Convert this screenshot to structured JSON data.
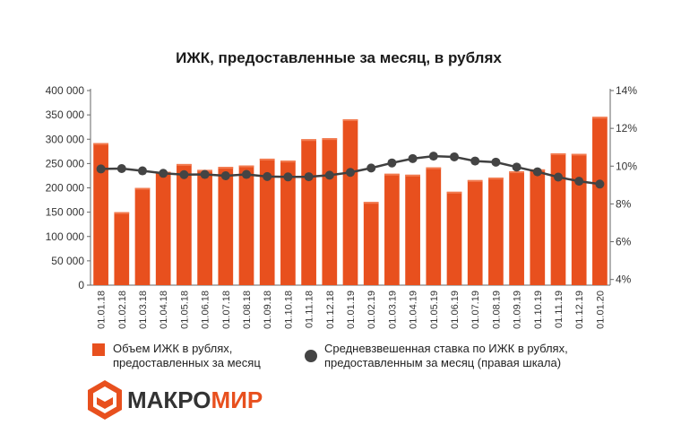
{
  "chart_data": {
    "type": "bar",
    "title": "ИЖК, предоставленные за месяц, в рублях",
    "categories": [
      "01.01.18",
      "01.02.18",
      "01.03.18",
      "01.04.18",
      "01.05.18",
      "01.06.18",
      "01.07.18",
      "01.08.18",
      "01.09.18",
      "01.10.18",
      "01.11.18",
      "01.12.18",
      "01.01.19",
      "01.02.19",
      "01.03.19",
      "01.04.19",
      "01.05.19",
      "01.06.19",
      "01.07.19",
      "01.08.19",
      "01.09.19",
      "01.10.19",
      "01.11.19",
      "01.12.19",
      "01.01.20"
    ],
    "y_left": {
      "ylim": [
        0,
        400000
      ],
      "ticks": [
        0,
        50000,
        100000,
        150000,
        200000,
        250000,
        300000,
        350000,
        400000
      ],
      "tick_labels": [
        "0",
        "50 000",
        "100 000",
        "150 000",
        "200 000",
        "250 000",
        "300 000",
        "350 000",
        "400 000"
      ]
    },
    "y_right": {
      "ylim": [
        3.7,
        14
      ],
      "ticks": [
        4,
        6,
        8,
        10,
        12,
        14
      ],
      "tick_labels": [
        "4%",
        "6%",
        "8%",
        "10%",
        "12%",
        "14%"
      ]
    },
    "series": [
      {
        "name": "Объем ИЖК в рублях, предоставленных за месяц",
        "type": "bar",
        "axis": "left",
        "color": "#e8501e",
        "values": [
          292000,
          150000,
          200000,
          233000,
          249000,
          237000,
          243000,
          246000,
          260000,
          256000,
          300000,
          302000,
          341000,
          171000,
          229000,
          227000,
          242000,
          192000,
          216000,
          221000,
          234000,
          238000,
          271000,
          270000,
          346000
        ]
      },
      {
        "name": "Средневзвешенная ставка по ИЖК  в рублях, предоставленным за месяц (правая шкала)",
        "type": "line",
        "axis": "right",
        "color": "#404040",
        "values": [
          9.85,
          9.87,
          9.75,
          9.62,
          9.55,
          9.56,
          9.49,
          9.56,
          9.45,
          9.43,
          9.44,
          9.52,
          9.67,
          9.9,
          10.17,
          10.4,
          10.53,
          10.49,
          10.27,
          10.21,
          9.95,
          9.7,
          9.42,
          9.2,
          9.05
        ]
      }
    ],
    "legend_position": "bottom",
    "grid": false
  },
  "legend": {
    "bar_line1": "Объем ИЖК в рублях,",
    "bar_line2": "предоставленных за месяц",
    "line_line1": "Средневзвешенная ставка по ИЖК  в рублях,",
    "line_line2": "предоставленным за месяц (правая шкала)"
  },
  "logo": {
    "part1": "МАКРО",
    "part2": "МИР",
    "color1": "#333333",
    "color2": "#e8501e"
  }
}
